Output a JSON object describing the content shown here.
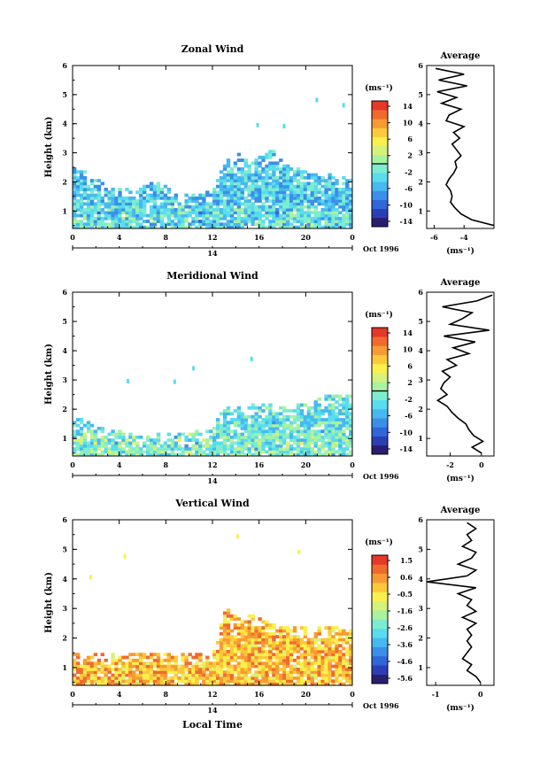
{
  "figure": {
    "common": {
      "y_label": "Height (km)",
      "x_label": "Local Time",
      "date_label": "Oct 1996",
      "day_label": "14",
      "avg_title": "Average",
      "units": "(ms⁻¹)",
      "x_ticks": [
        "0",
        "4",
        "8",
        "12",
        "16",
        "20",
        "0"
      ],
      "y_ticks": [
        "1",
        "2",
        "3",
        "4",
        "5",
        "6"
      ]
    }
  },
  "chart_data": [
    {
      "type": "heatmap",
      "id": "zonal",
      "title": "Zonal Wind",
      "xlabel": "",
      "ylabel": "Height (km)",
      "xlim": [
        0,
        24
      ],
      "ylim": [
        0.4,
        6
      ],
      "colorbar": {
        "label": "(ms⁻¹)",
        "ticks": [
          "14",
          "10",
          "6",
          "2",
          "-2",
          "-6",
          "-10",
          "-14"
        ],
        "range": [
          -16,
          16
        ],
        "marker_value": 0
      },
      "mean_value_estimate": -4.5,
      "cloud_top_profile_km": [
        [
          0,
          2.5
        ],
        [
          1.5,
          2.2
        ],
        [
          3,
          1.8
        ],
        [
          5,
          1.7
        ],
        [
          7,
          2.0
        ],
        [
          9,
          1.5
        ],
        [
          11,
          1.6
        ],
        [
          12,
          1.7
        ],
        [
          13,
          2.7
        ],
        [
          14,
          3.0
        ],
        [
          15,
          2.6
        ],
        [
          17,
          3.1
        ],
        [
          18,
          2.6
        ],
        [
          20,
          2.3
        ],
        [
          22,
          2.2
        ],
        [
          24,
          2.2
        ]
      ],
      "average_profile": {
        "x_ticks": [
          "-6",
          "-4"
        ],
        "xlim": [
          -6.5,
          -2
        ],
        "height_km": [
          0.5,
          0.7,
          0.9,
          1.1,
          1.3,
          1.5,
          1.7,
          1.9,
          2.1,
          2.3,
          2.5,
          2.7,
          2.9,
          3.1,
          3.3,
          3.5,
          3.7,
          3.9,
          4.1,
          4.3,
          4.5,
          4.7,
          4.9,
          5.1,
          5.3,
          5.5,
          5.7,
          5.9
        ],
        "wind_ms": [
          -2.0,
          -3.5,
          -4.2,
          -4.6,
          -4.9,
          -4.8,
          -4.9,
          -5.2,
          -5.0,
          -4.7,
          -4.5,
          -4.6,
          -4.2,
          -4.5,
          -4.8,
          -4.3,
          -4.7,
          -4.0,
          -5.2,
          -5.0,
          -4.2,
          -5.5,
          -4.5,
          -5.8,
          -3.8,
          -5.7,
          -4.0,
          -5.9
        ]
      }
    },
    {
      "type": "heatmap",
      "id": "meridional",
      "title": "Meridional Wind",
      "xlabel": "",
      "ylabel": "Height (km)",
      "xlim": [
        0,
        24
      ],
      "ylim": [
        0.4,
        6
      ],
      "colorbar": {
        "label": "(ms⁻¹)",
        "ticks": [
          "14",
          "10",
          "6",
          "2",
          "-2",
          "-6",
          "-10",
          "-14"
        ],
        "range": [
          -16,
          16
        ],
        "marker_value": 0
      },
      "mean_value_estimate": -2.5,
      "cloud_top_profile_km": [
        [
          0,
          1.7
        ],
        [
          2,
          1.4
        ],
        [
          4,
          1.2
        ],
        [
          6,
          1.2
        ],
        [
          8,
          1.1
        ],
        [
          10,
          1.2
        ],
        [
          12,
          1.4
        ],
        [
          13,
          2.1
        ],
        [
          14,
          2.0
        ],
        [
          16,
          2.2
        ],
        [
          18,
          2.0
        ],
        [
          20,
          2.2
        ],
        [
          22,
          2.5
        ],
        [
          24,
          2.4
        ]
      ],
      "average_profile": {
        "x_ticks": [
          "-2",
          "0"
        ],
        "xlim": [
          -3.5,
          0.8
        ],
        "height_km": [
          0.5,
          0.7,
          0.9,
          1.1,
          1.3,
          1.5,
          1.7,
          1.9,
          2.1,
          2.3,
          2.5,
          2.7,
          2.9,
          3.1,
          3.3,
          3.5,
          3.7,
          3.9,
          4.1,
          4.3,
          4.5,
          4.7,
          4.9,
          5.1,
          5.3,
          5.5,
          5.7,
          5.9
        ],
        "wind_ms": [
          0.0,
          -0.6,
          0.1,
          -0.5,
          -0.8,
          -1.0,
          -1.5,
          -1.9,
          -2.2,
          -2.8,
          -2.2,
          -2.6,
          -2.4,
          -2.0,
          -2.5,
          -1.6,
          -2.2,
          -0.8,
          -1.8,
          -0.4,
          -2.4,
          0.5,
          -2.0,
          -1.2,
          -0.6,
          -2.5,
          -0.3,
          0.7
        ]
      }
    },
    {
      "type": "heatmap",
      "id": "vertical",
      "title": "Vertical Wind",
      "xlabel": "Local Time",
      "ylabel": "Height (km)",
      "xlim": [
        0,
        24
      ],
      "ylim": [
        0.4,
        6
      ],
      "colorbar": {
        "label": "(ms⁻¹)",
        "ticks": [
          "1.5",
          "0.6",
          "-0.5",
          "-1.6",
          "-2.6",
          "-3.6",
          "-4.6",
          "-5.6"
        ],
        "range": [
          -6,
          2
        ],
        "marker_value": null
      },
      "mean_value_estimate": -0.3,
      "cloud_top_profile_km": [
        [
          0,
          1.5
        ],
        [
          6,
          1.5
        ],
        [
          12,
          1.5
        ],
        [
          13,
          3.0
        ],
        [
          14,
          2.8
        ],
        [
          16,
          2.7
        ],
        [
          18,
          2.4
        ],
        [
          20,
          2.3
        ],
        [
          22,
          2.4
        ],
        [
          24,
          2.3
        ]
      ],
      "average_profile": {
        "x_ticks": [
          "-1",
          "0"
        ],
        "xlim": [
          -1.2,
          0.3
        ],
        "height_km": [
          0.5,
          0.7,
          0.9,
          1.1,
          1.3,
          1.5,
          1.7,
          1.9,
          2.1,
          2.3,
          2.5,
          2.7,
          2.9,
          3.1,
          3.3,
          3.5,
          3.7,
          3.9,
          4.1,
          4.3,
          4.5,
          4.7,
          4.9,
          5.1,
          5.3,
          5.5,
          5.7,
          5.9
        ],
        "wind_ms": [
          0.0,
          -0.1,
          -0.3,
          -0.2,
          -0.4,
          -0.3,
          -0.2,
          -0.3,
          -0.2,
          -0.3,
          -0.1,
          -0.4,
          -0.1,
          -0.3,
          -0.2,
          -0.5,
          -0.1,
          -1.2,
          -0.3,
          -0.1,
          -0.5,
          -0.2,
          -0.1,
          -0.4,
          -0.2,
          -0.3,
          -0.1,
          -0.3
        ]
      }
    }
  ]
}
